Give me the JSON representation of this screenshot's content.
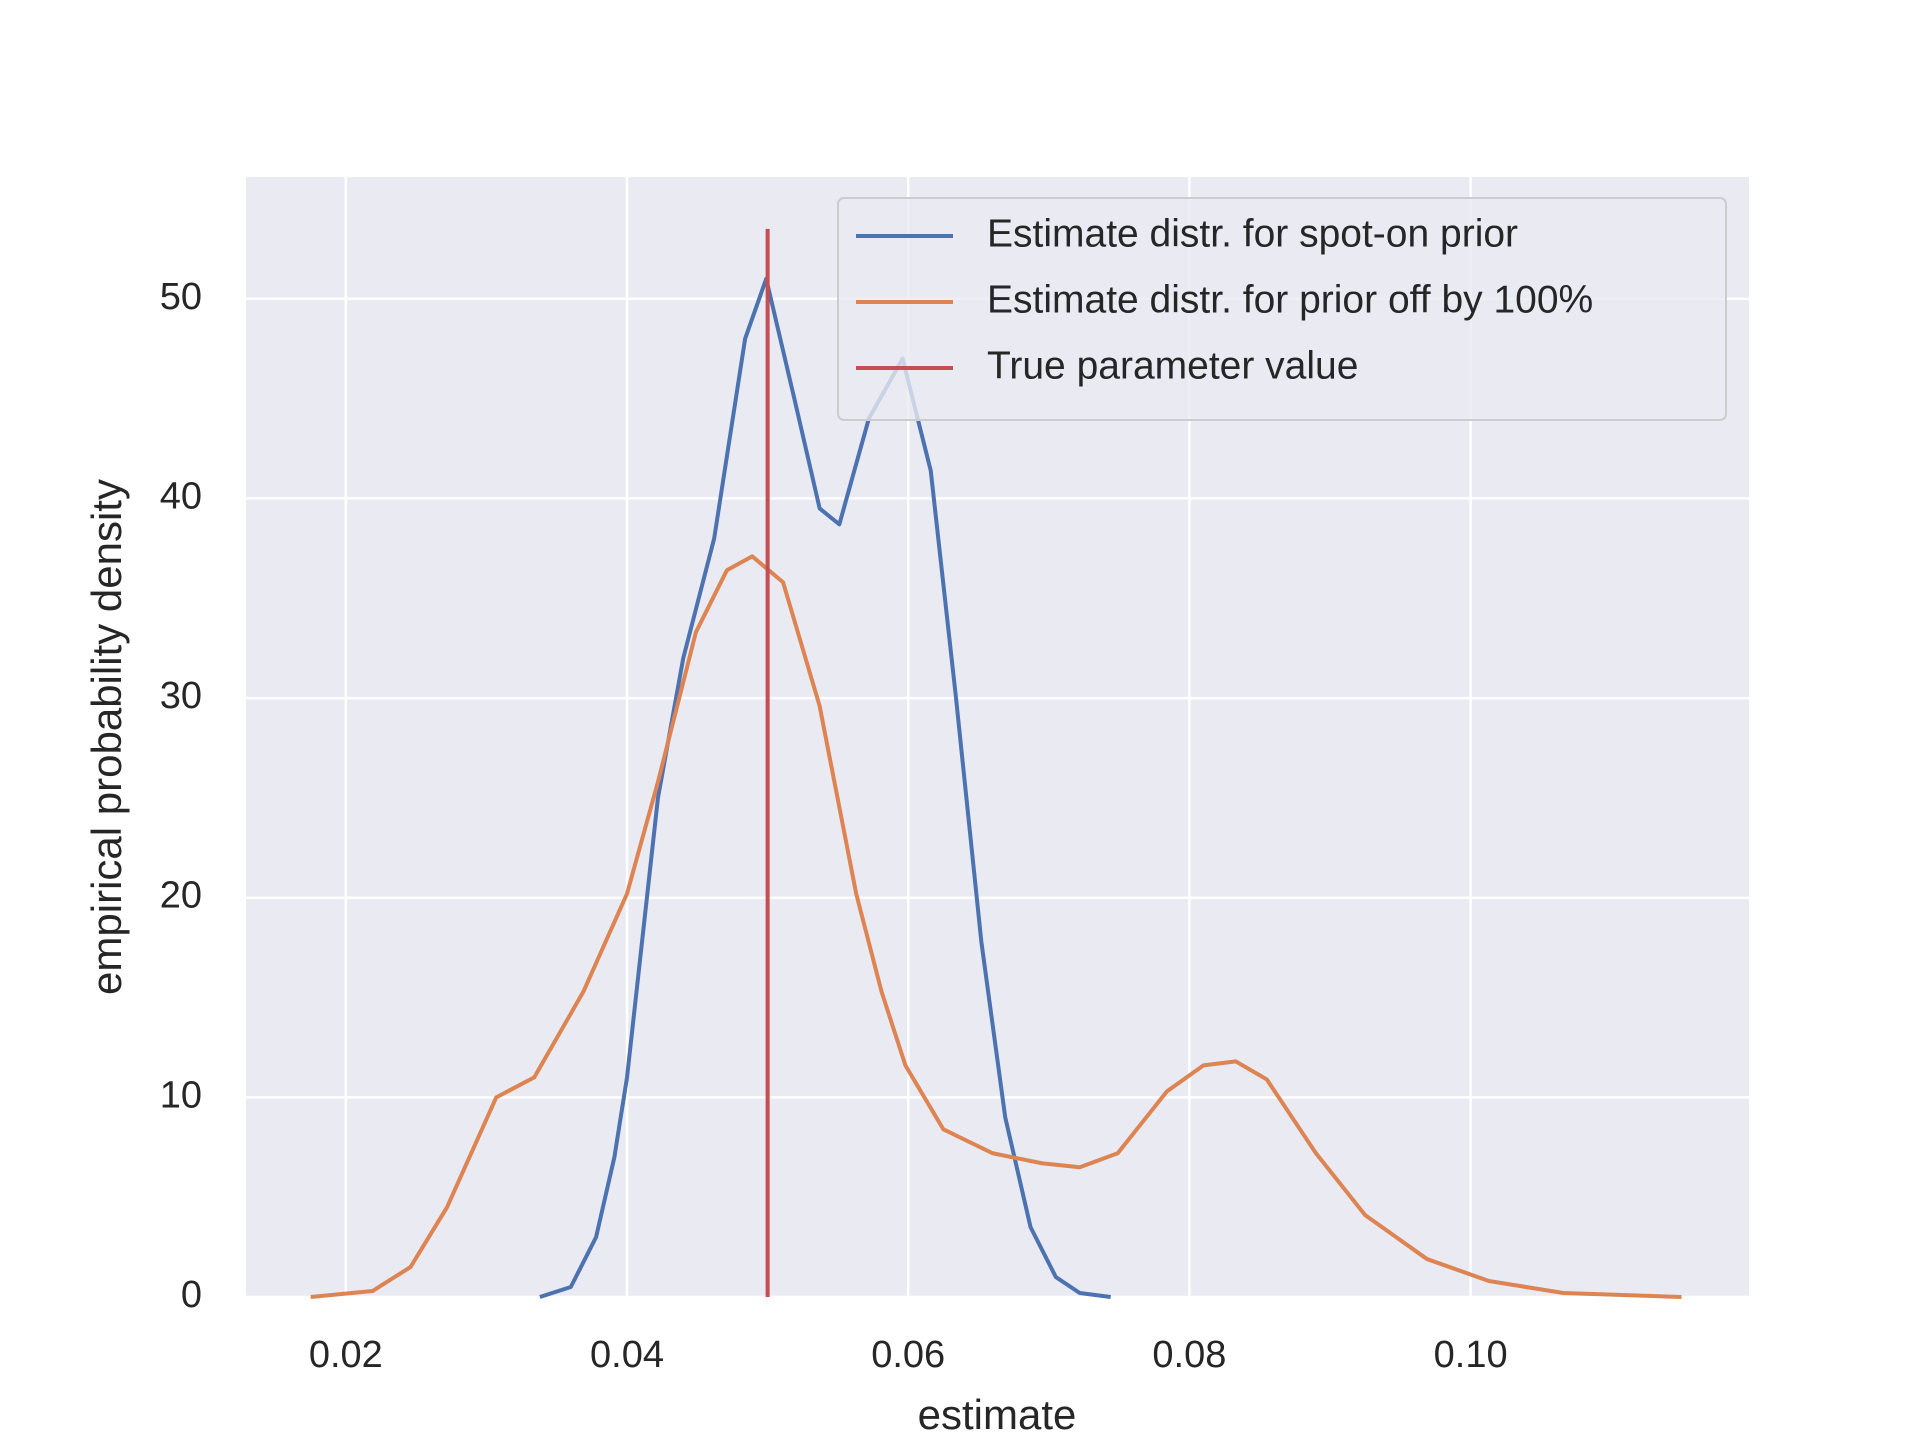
{
  "chart_data": {
    "type": "line",
    "x_label": "estimate",
    "y_label": "empirical probability density",
    "xlim": [
      0.0129,
      0.1198
    ],
    "ylim": [
      0,
      56.1
    ],
    "xticks": [
      0.02,
      0.04,
      0.06,
      0.08,
      {
        "value": 0.1,
        "label": "0.10"
      }
    ],
    "yticks": [
      0,
      10,
      20,
      30,
      40,
      50
    ],
    "grid": true,
    "legend": "upper right",
    "series": [
      {
        "name": "Estimate distr. for spot-on prior",
        "color": "#4c72b0",
        "x": [
          0.0338,
          0.036,
          0.0378,
          0.0391,
          0.04,
          0.0422,
          0.044,
          0.0462,
          0.0484,
          0.0499,
          0.0519,
          0.0537,
          0.0551,
          0.0572,
          0.0596,
          0.0616,
          0.0634,
          0.0652,
          0.0669,
          0.0687,
          0.0705,
          0.0722,
          0.0744
        ],
        "values": [
          0,
          0.5,
          3,
          7,
          11,
          25,
          32,
          38,
          48,
          51,
          45,
          39.5,
          38.7,
          44,
          47,
          41.4,
          30,
          17.8,
          9,
          3.5,
          1,
          0.2,
          0
        ]
      },
      {
        "name": "Estimate distr. for prior off by 100%",
        "color": "#dd8452",
        "x": [
          0.0175,
          0.0219,
          0.0246,
          0.0272,
          0.0307,
          0.0334,
          0.0369,
          0.04,
          0.0422,
          0.0449,
          0.0471,
          0.0489,
          0.0511,
          0.0537,
          0.0563,
          0.0581,
          0.0598,
          0.0625,
          0.066,
          0.0695,
          0.0722,
          0.0749,
          0.0784,
          0.081,
          0.0833,
          0.0855,
          0.089,
          0.0925,
          0.0969,
          0.1013,
          0.1066,
          0.115
        ],
        "values": [
          0,
          0.3,
          1.5,
          4.5,
          10,
          11,
          15.3,
          20.2,
          25.8,
          33.3,
          36.4,
          37.1,
          35.8,
          29.6,
          20.2,
          15.3,
          11.6,
          8.4,
          7.2,
          6.7,
          6.5,
          7.2,
          10.3,
          11.6,
          11.8,
          10.9,
          7.2,
          4.1,
          1.9,
          0.8,
          0.2,
          0
        ]
      },
      {
        "name": "True parameter value",
        "color": "#c44e52",
        "x": [
          0.05,
          0.05
        ],
        "values": [
          0,
          53.5
        ]
      }
    ]
  }
}
